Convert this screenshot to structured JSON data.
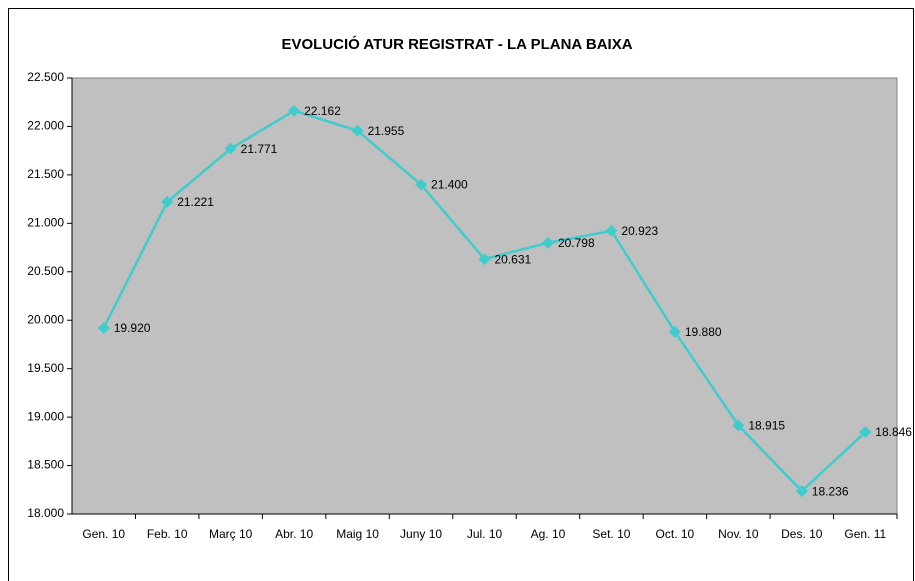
{
  "chart_data": {
    "type": "line",
    "title": "EVOLUCIÓ ATUR REGISTRAT - LA PLANA BAIXA",
    "categories": [
      "Gen. 10",
      "Feb. 10",
      "Març 10",
      "Abr. 10",
      "Maig 10",
      "Juny 10",
      "Jul. 10",
      "Ag. 10",
      "Set. 10",
      "Oct. 10",
      "Nov. 10",
      "Des. 10",
      "Gen. 11"
    ],
    "series": [
      {
        "color": "#40CCCC",
        "values": [
          19920,
          21221,
          21771,
          22162,
          21955,
          21400,
          20631,
          20798,
          20923,
          19880,
          18915,
          18236,
          18846
        ],
        "value_labels": [
          "19.920",
          "21.221",
          "21.771",
          "22.162",
          "21.955",
          "21.400",
          "20.631",
          "20.798",
          "20.923",
          "19.880",
          "18.915",
          "18.236",
          "18.846"
        ]
      }
    ],
    "ylim": [
      18000,
      22500
    ],
    "yticks": [
      {
        "value": 18000,
        "label": "18.000"
      },
      {
        "value": 18500,
        "label": "18.500"
      },
      {
        "value": 19000,
        "label": "19.000"
      },
      {
        "value": 19500,
        "label": "19.500"
      },
      {
        "value": 20000,
        "label": "20.000"
      },
      {
        "value": 20500,
        "label": "20.500"
      },
      {
        "value": 21000,
        "label": "21.000"
      },
      {
        "value": 21500,
        "label": "21.500"
      },
      {
        "value": 22000,
        "label": "22.000"
      },
      {
        "value": 22500,
        "label": "22.500"
      }
    ],
    "plot_background": "#C0C0C0"
  }
}
